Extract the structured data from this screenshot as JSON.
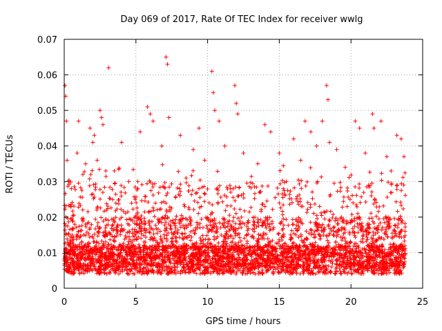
{
  "chart_data": {
    "type": "scatter",
    "title": "Day 069 of 2017, Rate Of TEC Index for receiver wwlg",
    "xlabel": "GPS time / hours",
    "ylabel": "ROTI / TECUs",
    "xlim": [
      0,
      25
    ],
    "ylim": [
      0,
      0.07
    ],
    "grid": true,
    "marker": "+",
    "marker_color": "#ff0000",
    "x_ticks": [
      0,
      5,
      10,
      15,
      20,
      25
    ],
    "x_tick_labels": [
      "0",
      "5",
      "10",
      "15",
      "20",
      "25"
    ],
    "y_ticks": [
      0,
      0.01,
      0.02,
      0.03,
      0.04,
      0.05,
      0.06,
      0.07
    ],
    "y_tick_labels": [
      "0",
      "0.01",
      "0.02",
      "0.03",
      "0.04",
      "0.05",
      "0.06",
      "0.07"
    ],
    "data_x_range": [
      0,
      23.8
    ],
    "series": [
      {
        "name": "ROTI",
        "x": [
          0.05,
          0.1,
          0.15,
          0.2,
          0.3,
          0.5,
          0.9,
          1.0,
          1.3,
          1.8,
          2.0,
          2.1,
          2.3,
          2.5,
          2.6,
          2.7,
          3.1,
          3.5,
          4.0,
          4.5,
          5.3,
          5.8,
          6.0,
          6.2,
          6.8,
          7.1,
          7.2,
          7.3,
          8.1,
          8.5,
          9.0,
          9.4,
          9.8,
          10.3,
          10.4,
          10.5,
          10.8,
          11.2,
          11.9,
          12.0,
          12.1,
          12.5,
          13.5,
          14.0,
          14.4,
          15.0,
          15.5,
          16.0,
          16.5,
          16.8,
          17.2,
          17.6,
          18.0,
          18.3,
          18.4,
          18.5,
          19.0,
          19.6,
          20.3,
          20.6,
          21.0,
          21.5,
          21.6,
          22.1,
          22.5,
          22.8,
          23.2,
          23.5,
          23.7
        ],
        "y": [
          0.057,
          0.054,
          0.047,
          0.036,
          0.03,
          0.028,
          0.038,
          0.047,
          0.032,
          0.045,
          0.041,
          0.043,
          0.036,
          0.05,
          0.048,
          0.046,
          0.062,
          0.033,
          0.041,
          0.03,
          0.044,
          0.051,
          0.049,
          0.047,
          0.04,
          0.065,
          0.063,
          0.048,
          0.043,
          0.031,
          0.039,
          0.045,
          0.036,
          0.061,
          0.055,
          0.05,
          0.047,
          0.04,
          0.057,
          0.052,
          0.049,
          0.038,
          0.035,
          0.046,
          0.044,
          0.038,
          0.03,
          0.042,
          0.036,
          0.047,
          0.044,
          0.04,
          0.047,
          0.057,
          0.053,
          0.041,
          0.039,
          0.034,
          0.047,
          0.045,
          0.038,
          0.049,
          0.045,
          0.047,
          0.037,
          0.033,
          0.043,
          0.042,
          0.037
        ]
      }
    ]
  }
}
